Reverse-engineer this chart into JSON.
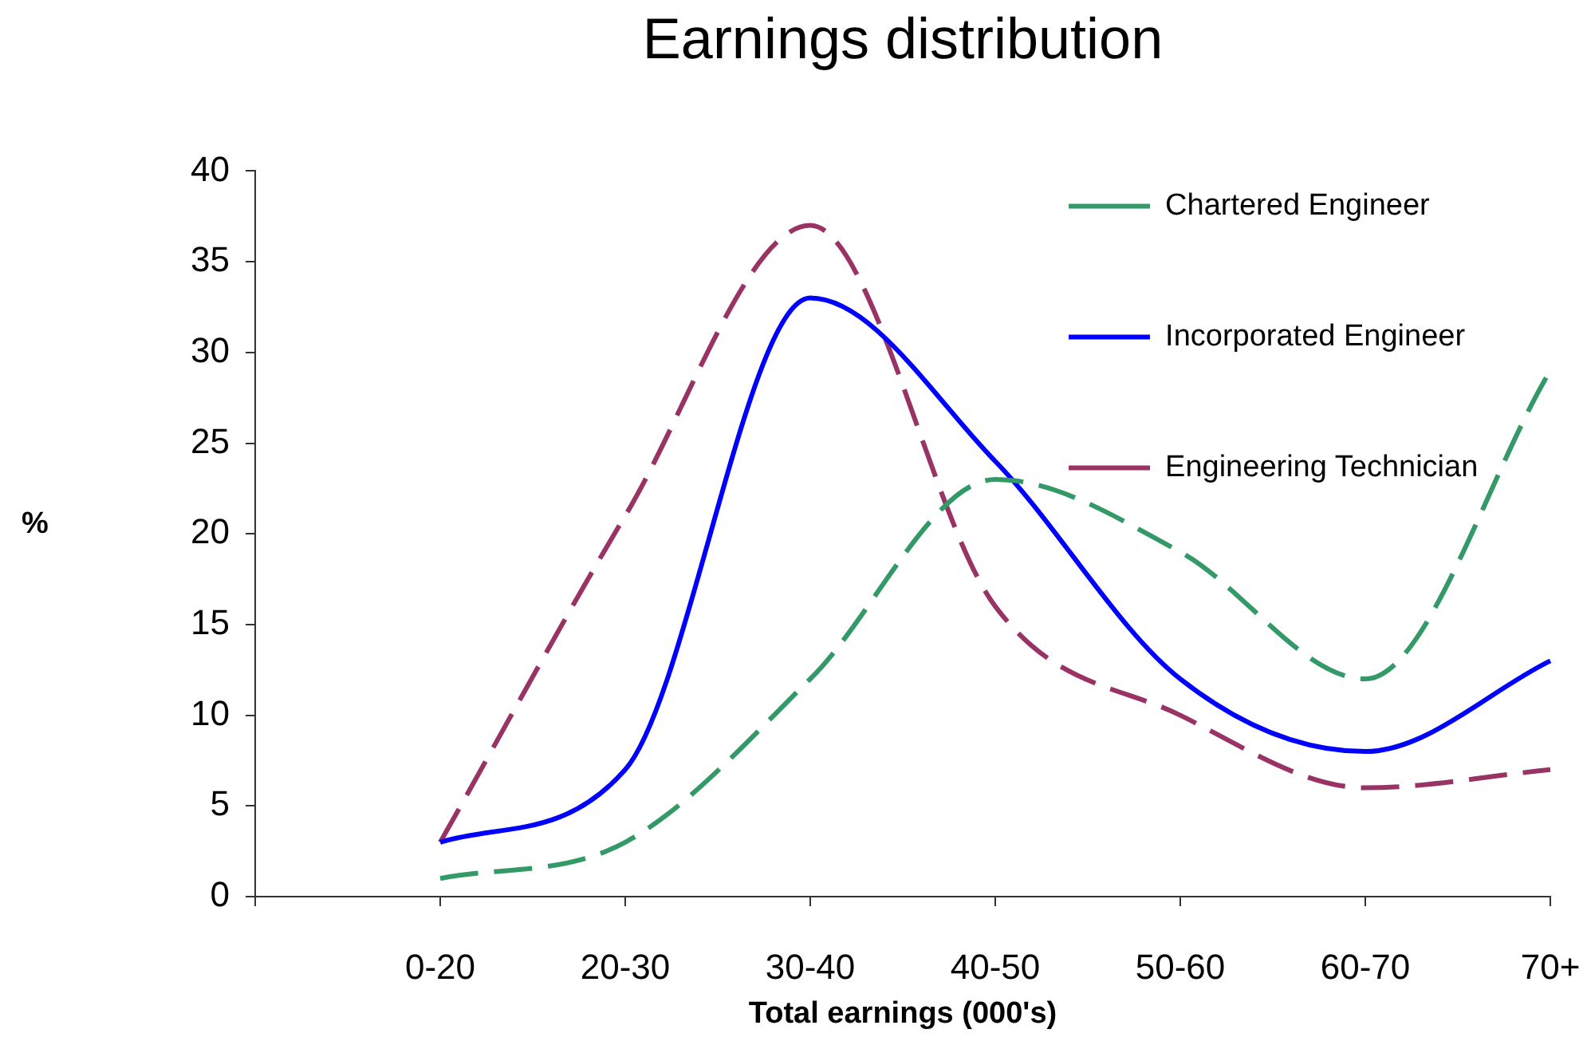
{
  "chart_data": {
    "type": "line",
    "title": "Earnings distribution",
    "xlabel": "Total earnings (000's)",
    "ylabel": "%",
    "categories": [
      null,
      "0-20",
      "20-30",
      "30-40",
      "40-50",
      "50-60",
      "60-70",
      "70+"
    ],
    "series": [
      {
        "name": "Chartered Engineer",
        "color": "#339966",
        "line_style": "dashed",
        "values": [
          null,
          1,
          3,
          12,
          23,
          19,
          12,
          29
        ]
      },
      {
        "name": "Incorporated Engineer",
        "color": "#0000ff",
        "line_style": "solid",
        "values": [
          null,
          3,
          7,
          33,
          24,
          12,
          8,
          13
        ]
      },
      {
        "name": "Engineering Technician",
        "color": "#993366",
        "line_style": "dashed",
        "values": [
          null,
          3,
          21,
          37,
          16,
          10,
          6,
          7
        ]
      }
    ],
    "ylim": [
      0,
      40
    ],
    "yticks": [
      0,
      5,
      10,
      15,
      20,
      25,
      30,
      35,
      40
    ],
    "grid": false,
    "legend": "top right"
  }
}
